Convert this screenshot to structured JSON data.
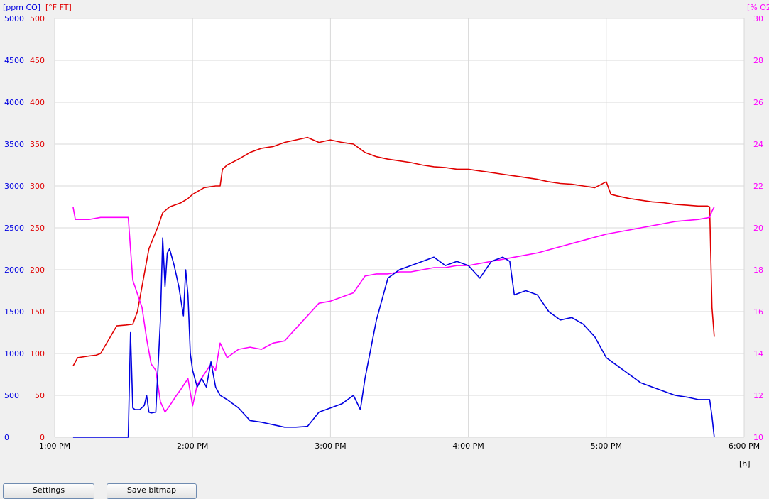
{
  "buttons": {
    "settings": "Settings",
    "save_bitmap": "Save bitmap"
  },
  "chart_data": {
    "type": "line",
    "title": "",
    "x_unit_label": "[h]",
    "x_ticks": [
      "1:00 PM",
      "2:00 PM",
      "3:00 PM",
      "4:00 PM",
      "5:00 PM",
      "6:00 PM"
    ],
    "xlim": [
      "1:00 PM",
      "6:00 PM"
    ],
    "grid": true,
    "axes": {
      "co": {
        "label": "[ppm CO]",
        "color": "#0000e0",
        "min": 0,
        "max": 5000,
        "ticks": [
          "0",
          "500",
          "1000",
          "1500",
          "2000",
          "2500",
          "3000",
          "3500",
          "4000",
          "4500",
          "5000"
        ]
      },
      "ft": {
        "label": "[°F FT]",
        "color": "#e00000",
        "min": 0,
        "max": 500,
        "ticks": [
          "0",
          "50",
          "100",
          "150",
          "200",
          "250",
          "300",
          "350",
          "400",
          "450",
          "500"
        ]
      },
      "o2": {
        "label": "[% O2",
        "color": "#ff00ff",
        "min": 10,
        "max": 30,
        "ticks": [
          "10",
          "12",
          "14",
          "16",
          "18",
          "20",
          "22",
          "24",
          "26",
          "28",
          "30"
        ]
      }
    },
    "series": [
      {
        "axis": "ft",
        "color": "#e00000",
        "time": [
          "1:08 PM",
          "1:10 PM",
          "1:15 PM",
          "1:18 PM",
          "1:20 PM",
          "1:27 PM",
          "1:31 PM",
          "1:34 PM",
          "1:36 PM",
          "1:41 PM",
          "1:45 PM",
          "1:47 PM",
          "1:50 PM",
          "1:55 PM",
          "1:58 PM",
          "2:00 PM",
          "2:05 PM",
          "2:10 PM",
          "2:12 PM",
          "2:13 PM",
          "2:15 PM",
          "2:20 PM",
          "2:25 PM",
          "2:30 PM",
          "2:35 PM",
          "2:40 PM",
          "2:45 PM",
          "2:50 PM",
          "2:55 PM",
          "3:00 PM",
          "3:05 PM",
          "3:10 PM",
          "3:15 PM",
          "3:20 PM",
          "3:25 PM",
          "3:30 PM",
          "3:35 PM",
          "3:40 PM",
          "3:45 PM",
          "3:50 PM",
          "3:55 PM",
          "4:00 PM",
          "4:05 PM",
          "4:10 PM",
          "4:15 PM",
          "4:20 PM",
          "4:25 PM",
          "4:30 PM",
          "4:35 PM",
          "4:40 PM",
          "4:45 PM",
          "4:50 PM",
          "4:55 PM",
          "5:00 PM",
          "5:02 PM",
          "5:05 PM",
          "5:10 PM",
          "5:15 PM",
          "5:20 PM",
          "5:25 PM",
          "5:30 PM",
          "5:35 PM",
          "5:40 PM",
          "5:44 PM",
          "5:45 PM",
          "5:46 PM",
          "5:47 PM"
        ],
        "values": [
          85,
          95,
          97,
          98,
          100,
          133,
          134,
          135,
          150,
          225,
          252,
          268,
          275,
          280,
          285,
          290,
          298,
          300,
          300,
          320,
          325,
          332,
          340,
          345,
          347,
          352,
          355,
          358,
          352,
          355,
          352,
          350,
          340,
          335,
          332,
          330,
          328,
          325,
          323,
          322,
          320,
          320,
          318,
          316,
          314,
          312,
          310,
          308,
          305,
          303,
          302,
          300,
          298,
          305,
          290,
          288,
          285,
          283,
          281,
          280,
          278,
          277,
          276,
          276,
          275,
          155,
          120
        ]
      },
      {
        "axis": "o2",
        "color": "#ff00ff",
        "time": [
          "1:08 PM",
          "1:09 PM",
          "1:15 PM",
          "1:20 PM",
          "1:25 PM",
          "1:32 PM",
          "1:33 PM",
          "1:34 PM",
          "1:38 PM",
          "1:40 PM",
          "1:42 PM",
          "1:44 PM",
          "1:46 PM",
          "1:48 PM",
          "1:50 PM",
          "1:53 PM",
          "1:55 PM",
          "1:58 PM",
          "2:00 PM",
          "2:02 PM",
          "2:05 PM",
          "2:08 PM",
          "2:10 PM",
          "2:12 PM",
          "2:15 PM",
          "2:20 PM",
          "2:25 PM",
          "2:30 PM",
          "2:35 PM",
          "2:40 PM",
          "2:45 PM",
          "2:50 PM",
          "2:55 PM",
          "3:00 PM",
          "3:05 PM",
          "3:10 PM",
          "3:15 PM",
          "3:20 PM",
          "3:25 PM",
          "3:30 PM",
          "3:35 PM",
          "3:40 PM",
          "3:45 PM",
          "3:50 PM",
          "3:55 PM",
          "4:00 PM",
          "4:05 PM",
          "4:10 PM",
          "4:20 PM",
          "4:30 PM",
          "4:40 PM",
          "4:50 PM",
          "5:00 PM",
          "5:10 PM",
          "5:20 PM",
          "5:30 PM",
          "5:40 PM",
          "5:45 PM",
          "5:46 PM",
          "5:47 PM"
        ],
        "values": [
          21.0,
          20.4,
          20.4,
          20.5,
          20.5,
          20.5,
          19.0,
          17.5,
          16.2,
          14.7,
          13.5,
          13.2,
          11.7,
          11.2,
          11.5,
          12.0,
          12.3,
          12.8,
          11.5,
          12.5,
          13.0,
          13.5,
          13.2,
          14.5,
          13.8,
          14.2,
          14.3,
          14.2,
          14.5,
          14.6,
          15.2,
          15.8,
          16.4,
          16.5,
          16.7,
          16.9,
          17.7,
          17.8,
          17.8,
          17.9,
          17.9,
          18.0,
          18.1,
          18.1,
          18.2,
          18.2,
          18.3,
          18.4,
          18.6,
          18.8,
          19.1,
          19.4,
          19.7,
          19.9,
          20.1,
          20.3,
          20.4,
          20.5,
          20.8,
          21.0
        ]
      },
      {
        "axis": "co",
        "color": "#0000e0",
        "time": [
          "1:08 PM",
          "1:20 PM",
          "1:32 PM",
          "1:33 PM",
          "1:34 PM",
          "1:35 PM",
          "1:37 PM",
          "1:39 PM",
          "1:40 PM",
          "1:41 PM",
          "1:42 PM",
          "1:44 PM",
          "1:46 PM",
          "1:47 PM",
          "1:48 PM",
          "1:49 PM",
          "1:50 PM",
          "1:52 PM",
          "1:54 PM",
          "1:56 PM",
          "1:57 PM",
          "1:58 PM",
          "1:59 PM",
          "2:00 PM",
          "2:02 PM",
          "2:04 PM",
          "2:06 PM",
          "2:08 PM",
          "2:10 PM",
          "2:12 PM",
          "2:15 PM",
          "2:20 PM",
          "2:25 PM",
          "2:30 PM",
          "2:35 PM",
          "2:40 PM",
          "2:45 PM",
          "2:50 PM",
          "2:55 PM",
          "3:00 PM",
          "3:05 PM",
          "3:10 PM",
          "3:13 PM",
          "3:15 PM",
          "3:20 PM",
          "3:25 PM",
          "3:30 PM",
          "3:35 PM",
          "3:40 PM",
          "3:45 PM",
          "3:50 PM",
          "3:55 PM",
          "4:00 PM",
          "4:05 PM",
          "4:10 PM",
          "4:15 PM",
          "4:18 PM",
          "4:20 PM",
          "4:25 PM",
          "4:30 PM",
          "4:35 PM",
          "4:40 PM",
          "4:45 PM",
          "4:50 PM",
          "4:55 PM",
          "5:00 PM",
          "5:05 PM",
          "5:10 PM",
          "5:15 PM",
          "5:20 PM",
          "5:25 PM",
          "5:30 PM",
          "5:35 PM",
          "5:40 PM",
          "5:45 PM",
          "5:46 PM",
          "5:47 PM"
        ],
        "values": [
          0,
          0,
          0,
          1250,
          350,
          330,
          330,
          380,
          500,
          300,
          290,
          300,
          1400,
          2380,
          1800,
          2200,
          2250,
          2050,
          1800,
          1450,
          2000,
          1700,
          1000,
          800,
          600,
          700,
          600,
          900,
          600,
          500,
          450,
          350,
          200,
          180,
          150,
          120,
          120,
          130,
          300,
          350,
          400,
          500,
          330,
          700,
          1400,
          1900,
          2000,
          2050,
          2100,
          2150,
          2050,
          2100,
          2050,
          1900,
          2100,
          2150,
          2100,
          1700,
          1750,
          1700,
          1500,
          1400,
          1430,
          1350,
          1200,
          950,
          850,
          750,
          650,
          600,
          550,
          500,
          480,
          450,
          450,
          250,
          0
        ]
      }
    ]
  }
}
